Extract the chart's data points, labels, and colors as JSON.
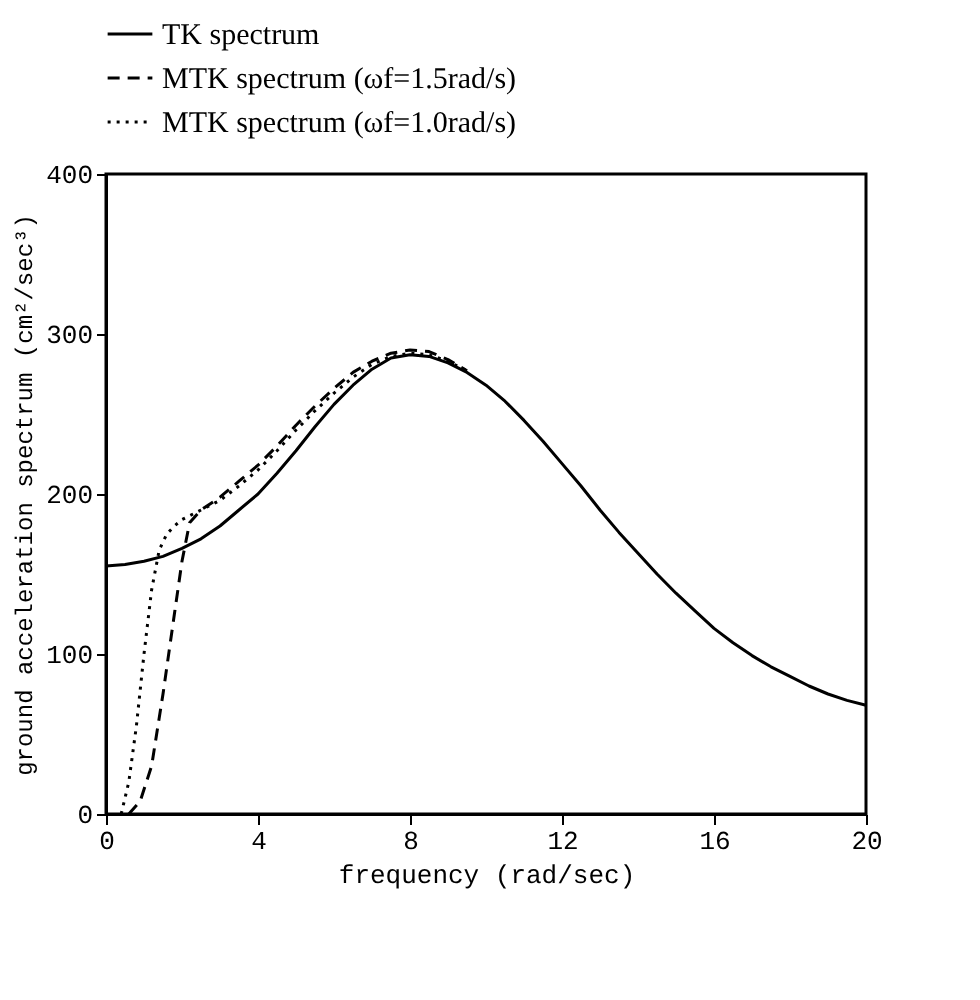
{
  "chart_data": {
    "type": "line",
    "xlabel": "frequency (rad/sec)",
    "ylabel": "ground acceleration spectrum (cm²/sec³)",
    "xlim": [
      0,
      20
    ],
    "ylim": [
      0,
      400
    ],
    "xticks": [
      0,
      4,
      8,
      12,
      16,
      20
    ],
    "yticks": [
      0,
      100,
      200,
      300,
      400
    ],
    "grid": false,
    "legend": "top",
    "marker": "none",
    "series": [
      {
        "name": "TK spectrum",
        "color": "#000000",
        "line_style": "solid",
        "x": [
          0,
          0.5,
          1,
          1.5,
          2,
          2.5,
          3,
          3.5,
          4,
          4.5,
          5,
          5.5,
          6,
          6.5,
          7,
          7.5,
          8,
          8.5,
          9,
          9.5,
          10,
          10.5,
          11,
          11.5,
          12,
          12.5,
          13,
          13.5,
          14,
          14.5,
          15,
          15.5,
          16,
          16.5,
          17,
          17.5,
          18,
          18.5,
          19,
          19.5,
          20
        ],
        "values": [
          155,
          156,
          158,
          161,
          166,
          172,
          180,
          190,
          200,
          213,
          227,
          242,
          256,
          268,
          278,
          285,
          287,
          286,
          282,
          276,
          268,
          258,
          246,
          233,
          219,
          205,
          190,
          176,
          163,
          150,
          138,
          127,
          116,
          107,
          99,
          92,
          86,
          80,
          75,
          71,
          68
        ]
      },
      {
        "name": "MTK spectrum (ωf=1.5rad/s)",
        "color": "#000000",
        "line_style": "dashed",
        "x": [
          0.6,
          0.9,
          1.2,
          1.5,
          1.8,
          2.0,
          2.2,
          2.5,
          3,
          3.5,
          4,
          4.5,
          5,
          5.5,
          6,
          6.5,
          7,
          7.5,
          8,
          8.5,
          9,
          9.5
        ],
        "values": [
          0,
          8,
          30,
          75,
          125,
          158,
          182,
          190,
          198,
          208,
          218,
          230,
          243,
          255,
          266,
          276,
          283,
          288,
          290,
          289,
          284,
          277
        ]
      },
      {
        "name": "MTK spectrum (ωf=1.0rad/s)",
        "color": "#000000",
        "line_style": "dotted",
        "x": [
          0.4,
          0.6,
          0.8,
          1.0,
          1.2,
          1.4,
          1.6,
          1.8,
          2.0,
          2.5,
          3,
          3.5,
          4,
          4.5,
          5,
          5.5,
          6,
          6.5,
          7,
          7.5,
          8,
          8.5,
          9,
          9.5
        ],
        "values": [
          0,
          20,
          55,
          100,
          140,
          165,
          175,
          180,
          184,
          190,
          196,
          205,
          215,
          227,
          240,
          252,
          263,
          273,
          281,
          286,
          288,
          287,
          283,
          277
        ]
      }
    ]
  }
}
